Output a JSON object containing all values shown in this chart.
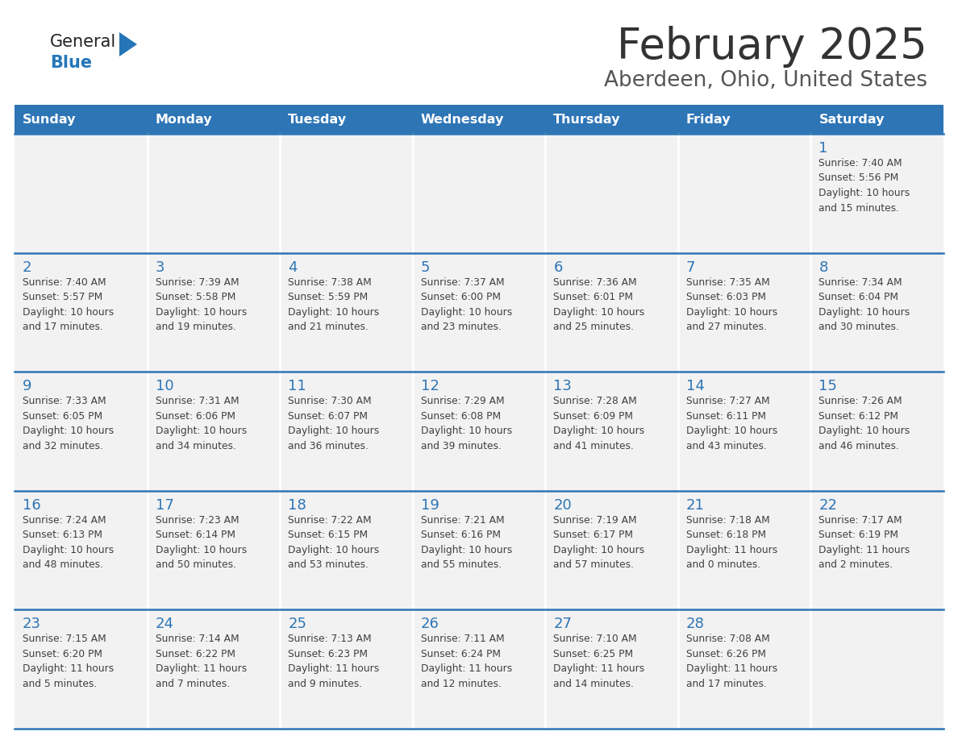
{
  "title": "February 2025",
  "subtitle": "Aberdeen, Ohio, United States",
  "days_of_week": [
    "Sunday",
    "Monday",
    "Tuesday",
    "Wednesday",
    "Thursday",
    "Friday",
    "Saturday"
  ],
  "header_bg": "#2E75B6",
  "header_text": "#FFFFFF",
  "cell_bg": "#F2F2F2",
  "day_num_color": "#2E75B6",
  "text_color": "#404040",
  "line_color": "#2E75B6",
  "logo_blue": "#2576B8",
  "logo_black": "#222222",
  "title_color": "#333333",
  "subtitle_color": "#555555",
  "calendar_data": [
    [
      {
        "day": null,
        "sunrise": null,
        "sunset": null,
        "daylight_hours": null,
        "daylight_mins": null
      },
      {
        "day": null,
        "sunrise": null,
        "sunset": null,
        "daylight_hours": null,
        "daylight_mins": null
      },
      {
        "day": null,
        "sunrise": null,
        "sunset": null,
        "daylight_hours": null,
        "daylight_mins": null
      },
      {
        "day": null,
        "sunrise": null,
        "sunset": null,
        "daylight_hours": null,
        "daylight_mins": null
      },
      {
        "day": null,
        "sunrise": null,
        "sunset": null,
        "daylight_hours": null,
        "daylight_mins": null
      },
      {
        "day": null,
        "sunrise": null,
        "sunset": null,
        "daylight_hours": null,
        "daylight_mins": null
      },
      {
        "day": 1,
        "sunrise": "7:40 AM",
        "sunset": "5:56 PM",
        "daylight_hours": 10,
        "daylight_mins": 15
      }
    ],
    [
      {
        "day": 2,
        "sunrise": "7:40 AM",
        "sunset": "5:57 PM",
        "daylight_hours": 10,
        "daylight_mins": 17
      },
      {
        "day": 3,
        "sunrise": "7:39 AM",
        "sunset": "5:58 PM",
        "daylight_hours": 10,
        "daylight_mins": 19
      },
      {
        "day": 4,
        "sunrise": "7:38 AM",
        "sunset": "5:59 PM",
        "daylight_hours": 10,
        "daylight_mins": 21
      },
      {
        "day": 5,
        "sunrise": "7:37 AM",
        "sunset": "6:00 PM",
        "daylight_hours": 10,
        "daylight_mins": 23
      },
      {
        "day": 6,
        "sunrise": "7:36 AM",
        "sunset": "6:01 PM",
        "daylight_hours": 10,
        "daylight_mins": 25
      },
      {
        "day": 7,
        "sunrise": "7:35 AM",
        "sunset": "6:03 PM",
        "daylight_hours": 10,
        "daylight_mins": 27
      },
      {
        "day": 8,
        "sunrise": "7:34 AM",
        "sunset": "6:04 PM",
        "daylight_hours": 10,
        "daylight_mins": 30
      }
    ],
    [
      {
        "day": 9,
        "sunrise": "7:33 AM",
        "sunset": "6:05 PM",
        "daylight_hours": 10,
        "daylight_mins": 32
      },
      {
        "day": 10,
        "sunrise": "7:31 AM",
        "sunset": "6:06 PM",
        "daylight_hours": 10,
        "daylight_mins": 34
      },
      {
        "day": 11,
        "sunrise": "7:30 AM",
        "sunset": "6:07 PM",
        "daylight_hours": 10,
        "daylight_mins": 36
      },
      {
        "day": 12,
        "sunrise": "7:29 AM",
        "sunset": "6:08 PM",
        "daylight_hours": 10,
        "daylight_mins": 39
      },
      {
        "day": 13,
        "sunrise": "7:28 AM",
        "sunset": "6:09 PM",
        "daylight_hours": 10,
        "daylight_mins": 41
      },
      {
        "day": 14,
        "sunrise": "7:27 AM",
        "sunset": "6:11 PM",
        "daylight_hours": 10,
        "daylight_mins": 43
      },
      {
        "day": 15,
        "sunrise": "7:26 AM",
        "sunset": "6:12 PM",
        "daylight_hours": 10,
        "daylight_mins": 46
      }
    ],
    [
      {
        "day": 16,
        "sunrise": "7:24 AM",
        "sunset": "6:13 PM",
        "daylight_hours": 10,
        "daylight_mins": 48
      },
      {
        "day": 17,
        "sunrise": "7:23 AM",
        "sunset": "6:14 PM",
        "daylight_hours": 10,
        "daylight_mins": 50
      },
      {
        "day": 18,
        "sunrise": "7:22 AM",
        "sunset": "6:15 PM",
        "daylight_hours": 10,
        "daylight_mins": 53
      },
      {
        "day": 19,
        "sunrise": "7:21 AM",
        "sunset": "6:16 PM",
        "daylight_hours": 10,
        "daylight_mins": 55
      },
      {
        "day": 20,
        "sunrise": "7:19 AM",
        "sunset": "6:17 PM",
        "daylight_hours": 10,
        "daylight_mins": 57
      },
      {
        "day": 21,
        "sunrise": "7:18 AM",
        "sunset": "6:18 PM",
        "daylight_hours": 11,
        "daylight_mins": 0
      },
      {
        "day": 22,
        "sunrise": "7:17 AM",
        "sunset": "6:19 PM",
        "daylight_hours": 11,
        "daylight_mins": 2
      }
    ],
    [
      {
        "day": 23,
        "sunrise": "7:15 AM",
        "sunset": "6:20 PM",
        "daylight_hours": 11,
        "daylight_mins": 5
      },
      {
        "day": 24,
        "sunrise": "7:14 AM",
        "sunset": "6:22 PM",
        "daylight_hours": 11,
        "daylight_mins": 7
      },
      {
        "day": 25,
        "sunrise": "7:13 AM",
        "sunset": "6:23 PM",
        "daylight_hours": 11,
        "daylight_mins": 9
      },
      {
        "day": 26,
        "sunrise": "7:11 AM",
        "sunset": "6:24 PM",
        "daylight_hours": 11,
        "daylight_mins": 12
      },
      {
        "day": 27,
        "sunrise": "7:10 AM",
        "sunset": "6:25 PM",
        "daylight_hours": 11,
        "daylight_mins": 14
      },
      {
        "day": 28,
        "sunrise": "7:08 AM",
        "sunset": "6:26 PM",
        "daylight_hours": 11,
        "daylight_mins": 17
      },
      {
        "day": null,
        "sunrise": null,
        "sunset": null,
        "daylight_hours": null,
        "daylight_mins": null
      }
    ]
  ]
}
